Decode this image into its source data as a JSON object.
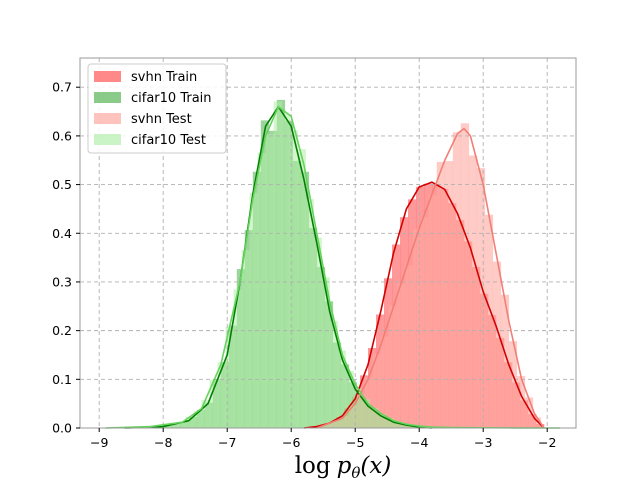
{
  "chart_data": {
    "type": "histogram",
    "xlabel": "log p_θ(x)",
    "xlabel_parts": {
      "op": "log",
      "p": "p",
      "sub": "θ",
      "arg": "(x)"
    },
    "xlim": [
      -9.3,
      -1.55
    ],
    "ylim": [
      0,
      0.76
    ],
    "xticks": [
      -9,
      -8,
      -7,
      -6,
      -5,
      -4,
      -3,
      -2
    ],
    "yticks": [
      0.0,
      0.1,
      0.2,
      0.3,
      0.4,
      0.5,
      0.6,
      0.7
    ],
    "xtick_labels": [
      "−9",
      "−8",
      "−7",
      "−6",
      "−5",
      "−4",
      "−3",
      "−2"
    ],
    "ytick_labels": [
      "0.0",
      "0.1",
      "0.2",
      "0.3",
      "0.4",
      "0.5",
      "0.6",
      "0.7"
    ],
    "grid": true,
    "legend_placement": "upper-left",
    "bin_width": 0.125,
    "series": [
      {
        "name": "svhn Train",
        "fill": "#ff5a5a",
        "alpha": 0.62,
        "line": "#d40000",
        "x": [
          -5.8,
          -5.6,
          -5.4,
          -5.2,
          -5.0,
          -4.8,
          -4.6,
          -4.4,
          -4.2,
          -4.0,
          -3.8,
          -3.6,
          -3.4,
          -3.2,
          -3.0,
          -2.8,
          -2.6,
          -2.4,
          -2.2,
          -2.05
        ],
        "y": [
          0.0,
          0.003,
          0.01,
          0.025,
          0.06,
          0.13,
          0.24,
          0.36,
          0.45,
          0.495,
          0.505,
          0.49,
          0.44,
          0.37,
          0.28,
          0.21,
          0.13,
          0.065,
          0.02,
          0.0
        ]
      },
      {
        "name": "cifar10 Train",
        "fill": "#4caf4c",
        "alpha": 0.55,
        "line": "#008000",
        "x": [
          -8.6,
          -8.0,
          -7.6,
          -7.3,
          -7.0,
          -6.8,
          -6.6,
          -6.4,
          -6.2,
          -6.0,
          -5.8,
          -5.6,
          -5.4,
          -5.2,
          -5.0,
          -4.8,
          -4.6,
          -4.4,
          -4.2,
          -4.0,
          -3.8
        ],
        "y": [
          0.0,
          0.003,
          0.015,
          0.05,
          0.15,
          0.3,
          0.48,
          0.62,
          0.66,
          0.62,
          0.51,
          0.38,
          0.24,
          0.14,
          0.08,
          0.045,
          0.025,
          0.012,
          0.006,
          0.002,
          0.0
        ]
      },
      {
        "name": "svhn Test",
        "fill": "#ffa9a2",
        "alpha": 0.6,
        "line": "#f07f76",
        "x": [
          -5.6,
          -5.2,
          -5.0,
          -4.8,
          -4.6,
          -4.4,
          -4.2,
          -4.0,
          -3.8,
          -3.6,
          -3.4,
          -3.3,
          -3.2,
          -3.0,
          -2.8,
          -2.6,
          -2.4,
          -2.2,
          -2.05
        ],
        "y": [
          0.0,
          0.02,
          0.05,
          0.1,
          0.17,
          0.25,
          0.33,
          0.41,
          0.48,
          0.55,
          0.605,
          0.615,
          0.6,
          0.5,
          0.36,
          0.22,
          0.1,
          0.03,
          0.0
        ]
      },
      {
        "name": "cifar10 Test",
        "fill": "#aeeea6",
        "alpha": 0.55,
        "line": "#66d35c",
        "x": [
          -8.9,
          -8.2,
          -7.7,
          -7.4,
          -7.1,
          -6.8,
          -6.6,
          -6.4,
          -6.2,
          -6.0,
          -5.8,
          -5.6,
          -5.4,
          -5.2,
          -5.0,
          -4.8,
          -4.6,
          -4.4,
          -4.2,
          -4.0,
          -3.8,
          -3.5,
          -3.0,
          -2.5,
          -2.0,
          -1.8
        ],
        "y": [
          0.0,
          0.003,
          0.012,
          0.04,
          0.13,
          0.3,
          0.47,
          0.6,
          0.66,
          0.64,
          0.54,
          0.4,
          0.26,
          0.15,
          0.09,
          0.05,
          0.03,
          0.015,
          0.008,
          0.004,
          0.002,
          0.001,
          0.0005,
          0.0002,
          0.0,
          0.0
        ]
      }
    ]
  }
}
